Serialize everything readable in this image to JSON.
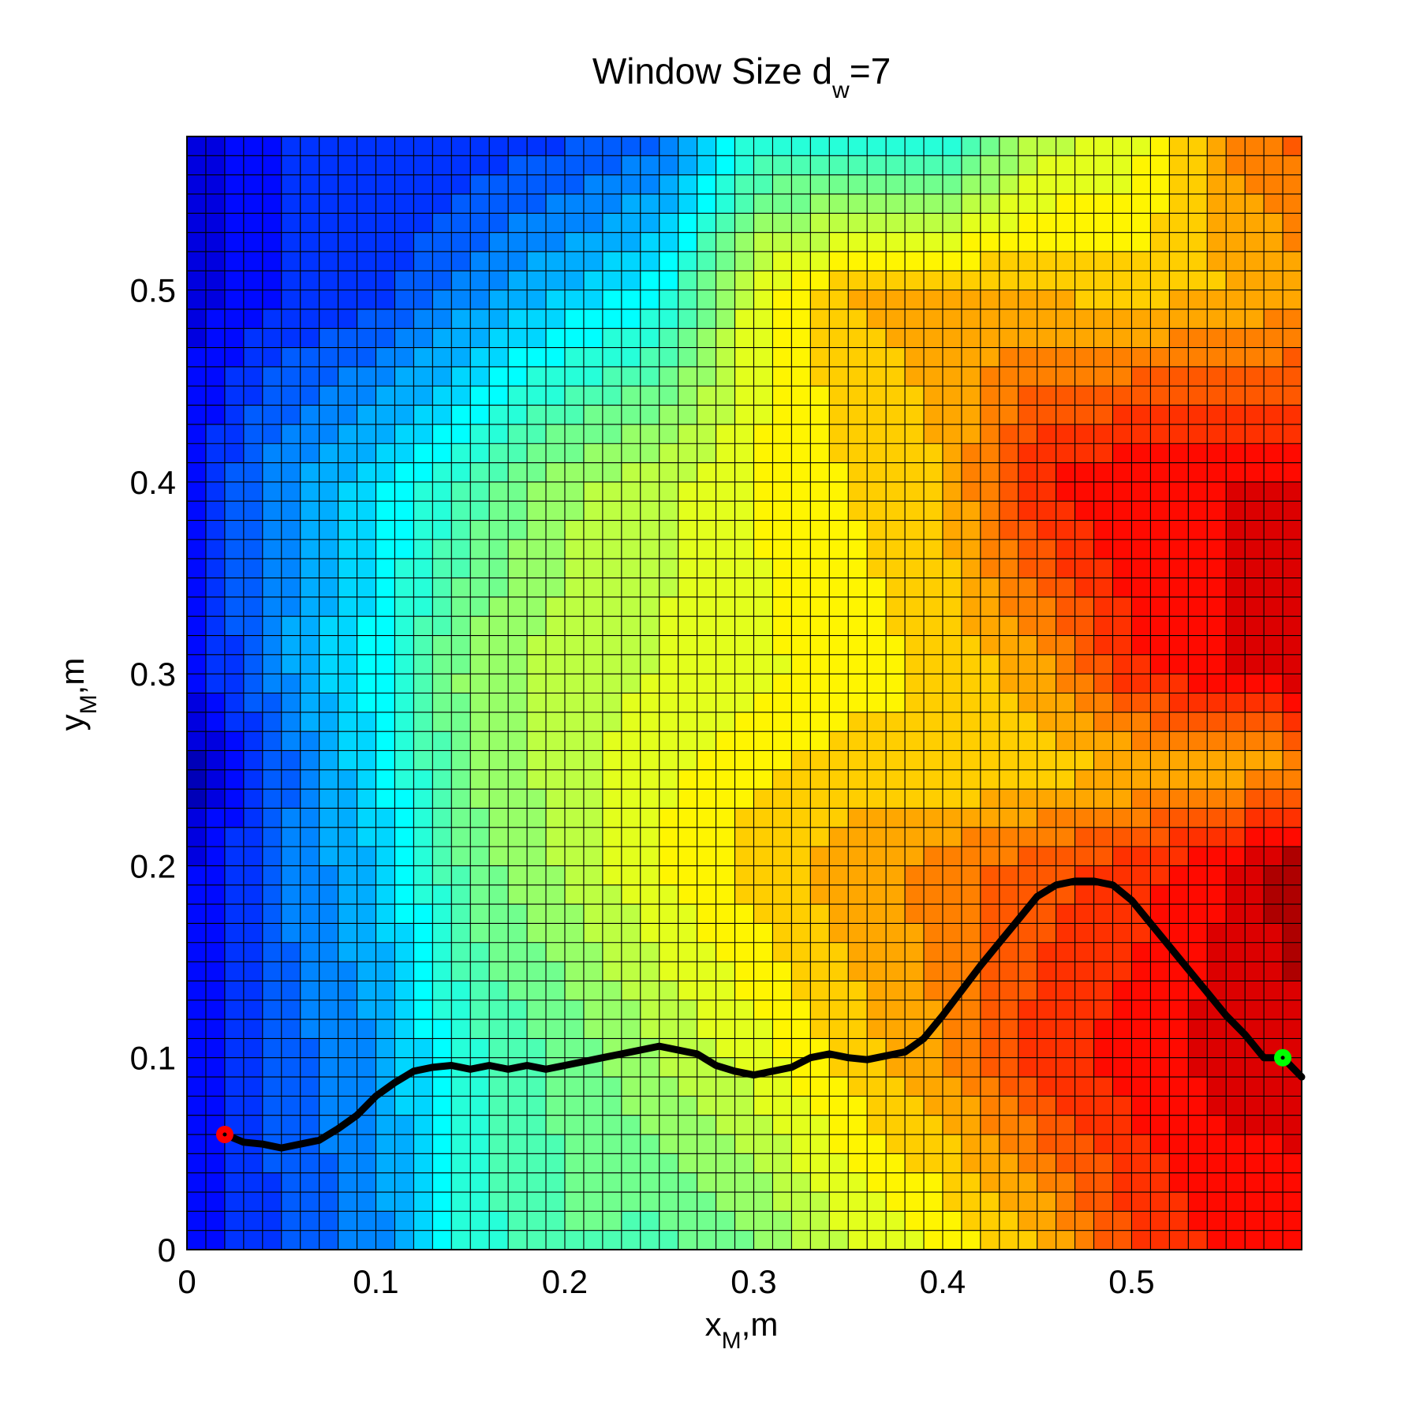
{
  "chart_data": {
    "type": "heatmap",
    "title": {
      "main": "Window Size d",
      "subscript": "w",
      "suffix": "=7"
    },
    "xlabel": {
      "main": "x",
      "subscript": "M",
      "suffix": ",m"
    },
    "ylabel": {
      "main": "y",
      "subscript": "M",
      "suffix": ",m"
    },
    "xlim": [
      0,
      0.59
    ],
    "ylim": [
      0,
      0.58
    ],
    "xticks": [
      0,
      0.1,
      0.2,
      0.3,
      0.4,
      0.5
    ],
    "xtick_labels": [
      "0",
      "0.1",
      "0.2",
      "0.3",
      "0.4",
      "0.5"
    ],
    "yticks": [
      0,
      0.1,
      0.2,
      0.3,
      0.4,
      0.5
    ],
    "ytick_labels": [
      "0",
      "0.1",
      "0.2",
      "0.3",
      "0.4",
      "0.5"
    ],
    "grid": {
      "cols": 59,
      "rows": 58,
      "cell_size_m": 0.01
    },
    "colormap": "jet",
    "colorscale_stops": [
      "#00008f",
      "#0000ff",
      "#00ffff",
      "#ffff00",
      "#ff0000",
      "#800000"
    ],
    "field_samples": {
      "x": [
        0.005,
        0.05,
        0.1,
        0.15,
        0.2,
        0.25,
        0.3,
        0.35,
        0.4,
        0.45,
        0.5,
        0.55,
        0.585
      ],
      "y": [
        0.005,
        0.1,
        0.2,
        0.25,
        0.3,
        0.4,
        0.5,
        0.575
      ],
      "values": [
        [
          0.12,
          0.18,
          0.24,
          0.4,
          0.46,
          0.45,
          0.5,
          0.58,
          0.63,
          0.7,
          0.82,
          0.87,
          0.88
        ],
        [
          0.12,
          0.2,
          0.26,
          0.41,
          0.47,
          0.54,
          0.6,
          0.68,
          0.74,
          0.84,
          0.88,
          0.92,
          0.92
        ],
        [
          0.1,
          0.22,
          0.3,
          0.48,
          0.55,
          0.62,
          0.68,
          0.72,
          0.76,
          0.8,
          0.84,
          0.9,
          0.97
        ],
        [
          0.04,
          0.2,
          0.34,
          0.5,
          0.56,
          0.61,
          0.65,
          0.68,
          0.66,
          0.68,
          0.7,
          0.72,
          0.72
        ],
        [
          0.12,
          0.25,
          0.36,
          0.52,
          0.56,
          0.58,
          0.61,
          0.64,
          0.67,
          0.72,
          0.85,
          0.9,
          0.92
        ],
        [
          0.14,
          0.25,
          0.33,
          0.43,
          0.53,
          0.57,
          0.62,
          0.66,
          0.7,
          0.86,
          0.9,
          0.9,
          0.9
        ],
        [
          0.08,
          0.14,
          0.16,
          0.24,
          0.3,
          0.36,
          0.6,
          0.7,
          0.72,
          0.7,
          0.68,
          0.7,
          0.72
        ],
        [
          0.08,
          0.14,
          0.14,
          0.16,
          0.18,
          0.22,
          0.4,
          0.4,
          0.38,
          0.56,
          0.6,
          0.74,
          0.78
        ]
      ]
    },
    "series": [
      {
        "x": [
          0.02,
          0.03,
          0.04,
          0.05,
          0.06,
          0.07,
          0.08,
          0.09,
          0.1,
          0.11,
          0.12,
          0.13,
          0.14,
          0.15,
          0.16,
          0.17,
          0.18,
          0.19,
          0.2,
          0.21,
          0.22,
          0.23,
          0.24,
          0.25,
          0.26,
          0.27,
          0.28,
          0.29,
          0.3,
          0.31,
          0.32,
          0.33,
          0.34,
          0.35,
          0.36,
          0.37,
          0.38,
          0.39,
          0.4,
          0.41,
          0.42,
          0.43,
          0.44,
          0.45,
          0.46,
          0.47,
          0.48,
          0.49,
          0.5,
          0.51,
          0.52,
          0.53,
          0.54,
          0.55,
          0.56,
          0.57,
          0.58,
          0.59
        ],
        "y": [
          0.06,
          0.056,
          0.055,
          0.053,
          0.055,
          0.057,
          0.063,
          0.07,
          0.08,
          0.087,
          0.093,
          0.095,
          0.096,
          0.094,
          0.096,
          0.094,
          0.096,
          0.094,
          0.096,
          0.098,
          0.1,
          0.102,
          0.104,
          0.106,
          0.104,
          0.102,
          0.096,
          0.093,
          0.091,
          0.093,
          0.095,
          0.1,
          0.102,
          0.1,
          0.099,
          0.101,
          0.103,
          0.11,
          0.122,
          0.135,
          0.148,
          0.16,
          0.172,
          0.184,
          0.19,
          0.192,
          0.192,
          0.19,
          0.182,
          0.17,
          0.158,
          0.146,
          0.134,
          0.122,
          0.112,
          0.1,
          0.1,
          0.09
        ]
      }
    ],
    "markers": [
      {
        "x": 0.02,
        "y": 0.06,
        "color": "#ff0000"
      },
      {
        "x": 0.58,
        "y": 0.1,
        "color": "#00ff00"
      }
    ]
  }
}
